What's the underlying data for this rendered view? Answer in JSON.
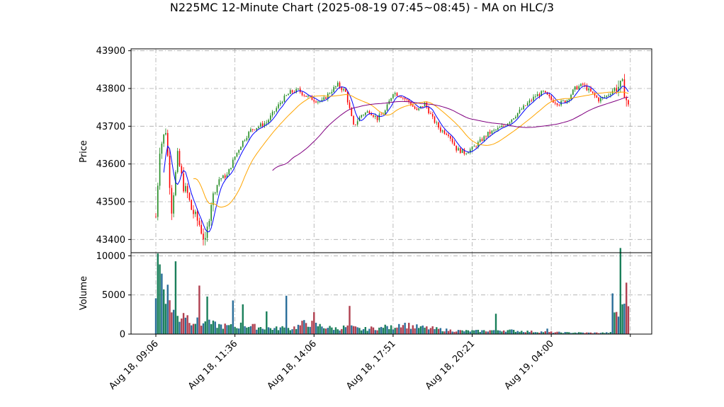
{
  "chart_data": {
    "type": "candlestick",
    "title": "N225MC 12-Minute Chart (2025-08-19 07:45~08:45) - MA on HLC/3",
    "price_panel": {
      "ylabel": "Price",
      "ylim": [
        43365,
        43905
      ],
      "yticks": [
        43400,
        43500,
        43600,
        43700,
        43800,
        43900
      ],
      "grid": true
    },
    "volume_panel": {
      "ylabel": "Volume",
      "ylim": [
        0,
        10400
      ],
      "yticks": [
        0,
        5000,
        10000
      ],
      "ytick_labels": [
        "0",
        "5000",
        "10000"
      ],
      "grid": true
    },
    "x_ticks": [
      "Aug 18, 09:06",
      "Aug 18, 11:36",
      "Aug 18, 14:06",
      "Aug 18, 17:51",
      "Aug 18, 20:21",
      "Aug 19, 04:00",
      ""
    ],
    "bar_count": 240,
    "price_anchors": [
      [
        0,
        43460
      ],
      [
        2,
        43640
      ],
      [
        5,
        43690
      ],
      [
        8,
        43480
      ],
      [
        11,
        43620
      ],
      [
        14,
        43540
      ],
      [
        16,
        43520
      ],
      [
        18,
        43480
      ],
      [
        22,
        43440
      ],
      [
        25,
        43390
      ],
      [
        28,
        43500
      ],
      [
        32,
        43560
      ],
      [
        36,
        43570
      ],
      [
        40,
        43620
      ],
      [
        44,
        43660
      ],
      [
        48,
        43690
      ],
      [
        52,
        43700
      ],
      [
        56,
        43710
      ],
      [
        60,
        43740
      ],
      [
        64,
        43770
      ],
      [
        68,
        43790
      ],
      [
        72,
        43795
      ],
      [
        76,
        43780
      ],
      [
        80,
        43770
      ],
      [
        84,
        43765
      ],
      [
        88,
        43790
      ],
      [
        92,
        43810
      ],
      [
        96,
        43790
      ],
      [
        100,
        43700
      ],
      [
        104,
        43730
      ],
      [
        108,
        43740
      ],
      [
        112,
        43720
      ],
      [
        116,
        43740
      ],
      [
        120,
        43790
      ],
      [
        124,
        43780
      ],
      [
        128,
        43765
      ],
      [
        132,
        43740
      ],
      [
        136,
        43760
      ],
      [
        140,
        43720
      ],
      [
        144,
        43690
      ],
      [
        148,
        43680
      ],
      [
        152,
        43640
      ],
      [
        156,
        43630
      ],
      [
        160,
        43640
      ],
      [
        164,
        43660
      ],
      [
        168,
        43680
      ],
      [
        172,
        43690
      ],
      [
        176,
        43700
      ],
      [
        180,
        43720
      ],
      [
        184,
        43740
      ],
      [
        188,
        43760
      ],
      [
        192,
        43780
      ],
      [
        196,
        43790
      ],
      [
        200,
        43770
      ],
      [
        204,
        43760
      ],
      [
        208,
        43770
      ],
      [
        212,
        43800
      ],
      [
        216,
        43810
      ],
      [
        220,
        43790
      ],
      [
        224,
        43770
      ],
      [
        228,
        43780
      ],
      [
        232,
        43800
      ],
      [
        236,
        43810
      ],
      [
        239,
        43750
      ]
    ],
    "volume_anchors": [
      [
        0,
        5500
      ],
      [
        1,
        9400
      ],
      [
        3,
        7800
      ],
      [
        6,
        5200
      ],
      [
        8,
        3500
      ],
      [
        10,
        2500
      ],
      [
        12,
        2000
      ],
      [
        14,
        3000
      ],
      [
        16,
        2200
      ],
      [
        18,
        1800
      ],
      [
        20,
        1600
      ],
      [
        24,
        1400
      ],
      [
        28,
        1300
      ],
      [
        32,
        1100
      ],
      [
        36,
        1000
      ],
      [
        40,
        900
      ],
      [
        44,
        1200
      ],
      [
        48,
        1000
      ],
      [
        52,
        900
      ],
      [
        56,
        800
      ],
      [
        60,
        700
      ],
      [
        64,
        800
      ],
      [
        68,
        700
      ],
      [
        72,
        1000
      ],
      [
        76,
        1500
      ],
      [
        80,
        1200
      ],
      [
        84,
        1000
      ],
      [
        88,
        800
      ],
      [
        92,
        700
      ],
      [
        96,
        900
      ],
      [
        100,
        800
      ],
      [
        104,
        600
      ],
      [
        108,
        700
      ],
      [
        112,
        800
      ],
      [
        116,
        700
      ],
      [
        120,
        900
      ],
      [
        124,
        1400
      ],
      [
        128,
        1100
      ],
      [
        132,
        900
      ],
      [
        136,
        800
      ],
      [
        140,
        700
      ],
      [
        144,
        600
      ],
      [
        148,
        500
      ],
      [
        152,
        450
      ],
      [
        156,
        400
      ],
      [
        160,
        400
      ],
      [
        164,
        400
      ],
      [
        168,
        450
      ],
      [
        172,
        500
      ],
      [
        176,
        500
      ],
      [
        180,
        450
      ],
      [
        184,
        400
      ],
      [
        188,
        350
      ],
      [
        192,
        300
      ],
      [
        196,
        300
      ],
      [
        200,
        250
      ],
      [
        204,
        220
      ],
      [
        208,
        200
      ],
      [
        212,
        200
      ],
      [
        216,
        180
      ],
      [
        220,
        170
      ],
      [
        224,
        170
      ],
      [
        228,
        180
      ],
      [
        231,
        200
      ],
      [
        232,
        3000
      ],
      [
        234,
        2500
      ],
      [
        235,
        8700
      ],
      [
        236,
        3800
      ],
      [
        237,
        5500
      ],
      [
        238,
        5000
      ],
      [
        239,
        4500
      ]
    ],
    "volume_spikes": [
      [
        10,
        9300
      ],
      [
        22,
        6200
      ],
      [
        26,
        4800
      ],
      [
        39,
        4300
      ],
      [
        44,
        3800
      ],
      [
        56,
        2900
      ],
      [
        66,
        4900
      ],
      [
        80,
        2800
      ],
      [
        98,
        3600
      ],
      [
        116,
        1200
      ],
      [
        140,
        1000
      ],
      [
        172,
        2600
      ],
      [
        198,
        700
      ],
      [
        231,
        5200
      ]
    ],
    "ma_periods": [
      5,
      20,
      60
    ],
    "series": [
      {
        "name": "",
        "color": "#0000ff",
        "period": 5
      },
      {
        "name": "",
        "color": "#ffa500",
        "period": 20
      },
      {
        "name": "",
        "color": "#800080",
        "period": 60
      }
    ],
    "colors": {
      "up": "#228b22",
      "down": "#ff0000",
      "volume_up": "#1a7f5a",
      "volume_down": "#b04050",
      "volume_alt": "#2a6e9a"
    }
  }
}
